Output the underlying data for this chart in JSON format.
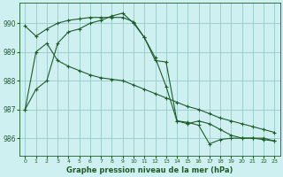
{
  "background_color": "#cff0f0",
  "grid_color": "#9ecece",
  "line_color": "#1e5c2a",
  "title": "Graphe pression niveau de la mer (hPa)",
  "xlim": [
    -0.5,
    23.5
  ],
  "ylim": [
    985.4,
    990.7
  ],
  "yticks": [
    986,
    987,
    988,
    989,
    990
  ],
  "xticks": [
    0,
    1,
    2,
    3,
    4,
    5,
    6,
    7,
    8,
    9,
    10,
    11,
    12,
    13,
    14,
    15,
    16,
    17,
    18,
    19,
    20,
    21,
    22,
    23
  ],
  "series": [
    {
      "x": [
        0,
        1,
        2,
        3,
        4,
        5,
        6,
        7,
        8,
        9,
        10,
        11,
        12,
        13,
        14,
        15,
        16,
        17,
        18,
        19,
        20,
        21,
        22,
        23
      ],
      "y": [
        987.0,
        987.7,
        988.0,
        989.3,
        989.7,
        989.8,
        990.0,
        990.1,
        990.25,
        990.35,
        990.0,
        989.5,
        988.8,
        987.8,
        986.6,
        986.5,
        986.6,
        986.5,
        986.3,
        986.1,
        986.0,
        986.0,
        986.0,
        985.9
      ]
    },
    {
      "x": [
        0,
        1,
        2,
        3,
        4,
        5,
        6,
        7,
        8,
        9,
        10,
        11,
        12,
        13,
        14,
        15,
        16,
        17,
        18,
        19,
        20,
        21,
        22,
        23
      ],
      "y": [
        987.0,
        989.0,
        989.3,
        988.7,
        988.5,
        988.35,
        988.2,
        988.1,
        988.05,
        988.0,
        987.85,
        987.7,
        987.55,
        987.4,
        987.25,
        987.1,
        987.0,
        986.85,
        986.7,
        986.6,
        986.5,
        986.4,
        986.3,
        986.2
      ]
    },
    {
      "x": [
        0,
        1,
        2,
        3,
        4,
        5,
        6,
        7,
        8,
        9,
        10,
        11,
        12,
        13,
        14,
        15,
        16,
        17,
        18,
        19,
        20,
        21,
        22,
        23
      ],
      "y": [
        989.9,
        989.55,
        989.8,
        990.0,
        990.1,
        990.15,
        990.2,
        990.2,
        990.2,
        990.2,
        990.05,
        989.5,
        988.7,
        988.65,
        986.6,
        986.55,
        986.45,
        985.8,
        985.95,
        986.0,
        986.0,
        986.0,
        985.95,
        985.9
      ]
    }
  ]
}
